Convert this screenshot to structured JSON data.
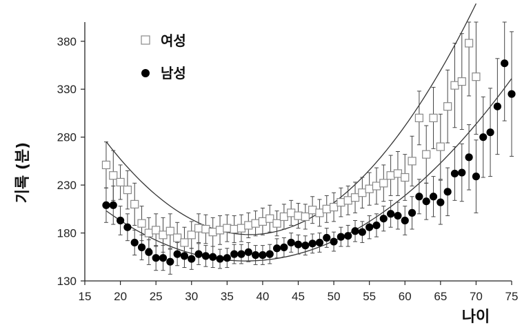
{
  "chart_data": {
    "type": "scatter",
    "title": "",
    "xlabel": "나이",
    "ylabel": "기록 (분)",
    "xlim": [
      15,
      75
    ],
    "ylim": [
      130,
      400
    ],
    "xticks": [
      15,
      20,
      25,
      30,
      35,
      40,
      45,
      50,
      55,
      60,
      65,
      70,
      75
    ],
    "yticks": [
      130,
      180,
      230,
      280,
      330,
      380
    ],
    "grid": false,
    "legend_position": "top-left",
    "series": [
      {
        "name": "여성",
        "marker": "open-square",
        "color": "#888888",
        "x": [
          18,
          19,
          20,
          21,
          22,
          23,
          24,
          25,
          26,
          27,
          28,
          29,
          30,
          31,
          32,
          33,
          34,
          35,
          36,
          37,
          38,
          39,
          40,
          41,
          42,
          43,
          44,
          45,
          46,
          47,
          48,
          49,
          50,
          51,
          52,
          53,
          54,
          55,
          56,
          57,
          58,
          59,
          60,
          61,
          62,
          63,
          64,
          65,
          66,
          67,
          68,
          69,
          70
        ],
        "y": [
          251,
          240,
          233,
          225,
          210,
          190,
          180,
          183,
          178,
          182,
          175,
          170,
          178,
          185,
          184,
          181,
          183,
          185,
          184,
          185,
          188,
          190,
          192,
          195,
          190,
          197,
          201,
          198,
          197,
          204,
          201,
          205,
          207,
          212,
          214,
          217,
          222,
          226,
          229,
          232,
          240,
          242,
          238,
          255,
          300,
          262,
          300,
          270,
          312,
          334,
          338,
          378,
          343
        ],
        "err": [
          24,
          26,
          18,
          20,
          22,
          18,
          16,
          17,
          18,
          18,
          16,
          16,
          14,
          15,
          15,
          15,
          15,
          14,
          14,
          14,
          13,
          13,
          14,
          14,
          13,
          13,
          13,
          13,
          13,
          14,
          14,
          14,
          15,
          15,
          15,
          16,
          16,
          17,
          19,
          19,
          21,
          23,
          24,
          26,
          28,
          30,
          32,
          34,
          38,
          44,
          50,
          55,
          60
        ],
        "fit": [
          0.23806,
          -18.18,
          525.42
        ]
      },
      {
        "name": "남성",
        "marker": "filled-circle",
        "color": "#000000",
        "x": [
          18,
          19,
          20,
          21,
          22,
          23,
          24,
          25,
          26,
          27,
          28,
          29,
          30,
          31,
          32,
          33,
          34,
          35,
          36,
          37,
          38,
          39,
          40,
          41,
          42,
          43,
          44,
          45,
          46,
          47,
          48,
          49,
          50,
          51,
          52,
          53,
          54,
          55,
          56,
          57,
          58,
          59,
          60,
          61,
          62,
          63,
          64,
          65,
          66,
          67,
          68,
          69,
          70,
          71,
          72,
          73,
          74,
          75
        ],
        "y": [
          209,
          209,
          193,
          186,
          170,
          165,
          160,
          154,
          154,
          150,
          158,
          156,
          153,
          158,
          156,
          155,
          153,
          154,
          158,
          158,
          160,
          157,
          157,
          158,
          164,
          165,
          170,
          168,
          167,
          169,
          170,
          175,
          171,
          176,
          177,
          182,
          181,
          186,
          188,
          195,
          200,
          198,
          193,
          201,
          218,
          213,
          218,
          212,
          223,
          242,
          243,
          259,
          239,
          280,
          285,
          312,
          357,
          325
        ],
        "err": [
          18,
          20,
          15,
          14,
          13,
          13,
          13,
          13,
          13,
          13,
          12,
          12,
          11,
          11,
          11,
          11,
          10,
          10,
          10,
          10,
          10,
          10,
          10,
          10,
          10,
          10,
          10,
          10,
          10,
          10,
          10,
          10,
          10,
          10,
          11,
          11,
          11,
          12,
          12,
          13,
          14,
          14,
          15,
          17,
          18,
          19,
          21,
          23,
          25,
          28,
          30,
          34,
          38,
          42,
          46,
          50,
          60,
          65
        ],
        "fit": [
          0.13614,
          -10.24,
          343.37
        ]
      }
    ]
  }
}
